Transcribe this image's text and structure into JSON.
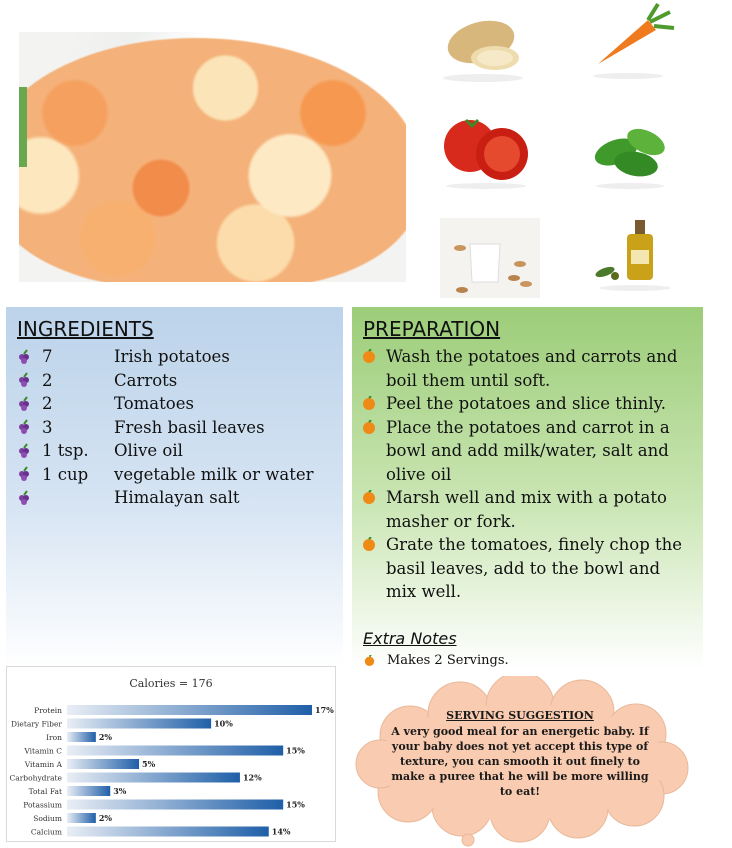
{
  "ingredients": {
    "title": "INGREDIENTS",
    "items": [
      {
        "qty": "7",
        "name": "Irish potatoes"
      },
      {
        "qty": "2",
        "name": "Carrots"
      },
      {
        "qty": "2",
        "name": "Tomatoes"
      },
      {
        "qty": "3",
        "name": "Fresh basil leaves"
      },
      {
        "qty": "1 tsp.",
        "name": "Olive oil"
      },
      {
        "qty": "1 cup",
        "name": "vegetable milk or water"
      },
      {
        "qty": "",
        "name": "Himalayan salt"
      }
    ]
  },
  "preparation": {
    "title": "PREPARATION",
    "steps": [
      "Wash the potatoes and carrots and boil them until soft.",
      "Peel the potatoes and slice thinly.",
      "Place the potatoes and carrot in a bowl and add milk/water, salt and olive oil",
      "Marsh well and mix with a potato masher or fork.",
      "Grate the tomatoes, finely chop the basil leaves, add to the bowl and mix well."
    ],
    "extra_title": "Extra Notes",
    "extra_items": [
      "Makes 2 Servings."
    ]
  },
  "serving": {
    "title": "SERVING SUGGESTION",
    "text": "A very good meal for an energetic baby. If your baby does not yet accept this type of texture, you can smooth it out finely to make a puree that he will be more willing to eat!"
  },
  "chart_data": {
    "type": "bar",
    "orientation": "horizontal",
    "title": "Calories = 176",
    "categories": [
      "Protein",
      "Dietary Fiber",
      "Iron",
      "Vitamin C",
      "Vitamin A",
      "Carbohydrate",
      "Total Fat",
      "Potassium",
      "Sodium",
      "Calcium"
    ],
    "values": [
      17,
      10,
      2,
      15,
      5,
      12,
      3,
      15,
      2,
      14
    ],
    "value_labels": [
      "17%",
      "10%",
      "2%",
      "15%",
      "5%",
      "12%",
      "3%",
      "15%",
      "2%",
      "14%"
    ],
    "xlim": [
      0,
      17
    ],
    "grid": false,
    "bar_color": "#1f5fa8"
  },
  "colors": {
    "ingredients_panel": "#bcd3ea",
    "preparation_panel": "#9ccd78",
    "cloud": "#f9cbb0"
  },
  "icons": [
    "grape-bullet-icon",
    "orange-bullet-icon",
    "potato-icon",
    "carrot-icon",
    "tomato-icon",
    "basil-icon",
    "almond-milk-icon",
    "olive-oil-icon"
  ]
}
